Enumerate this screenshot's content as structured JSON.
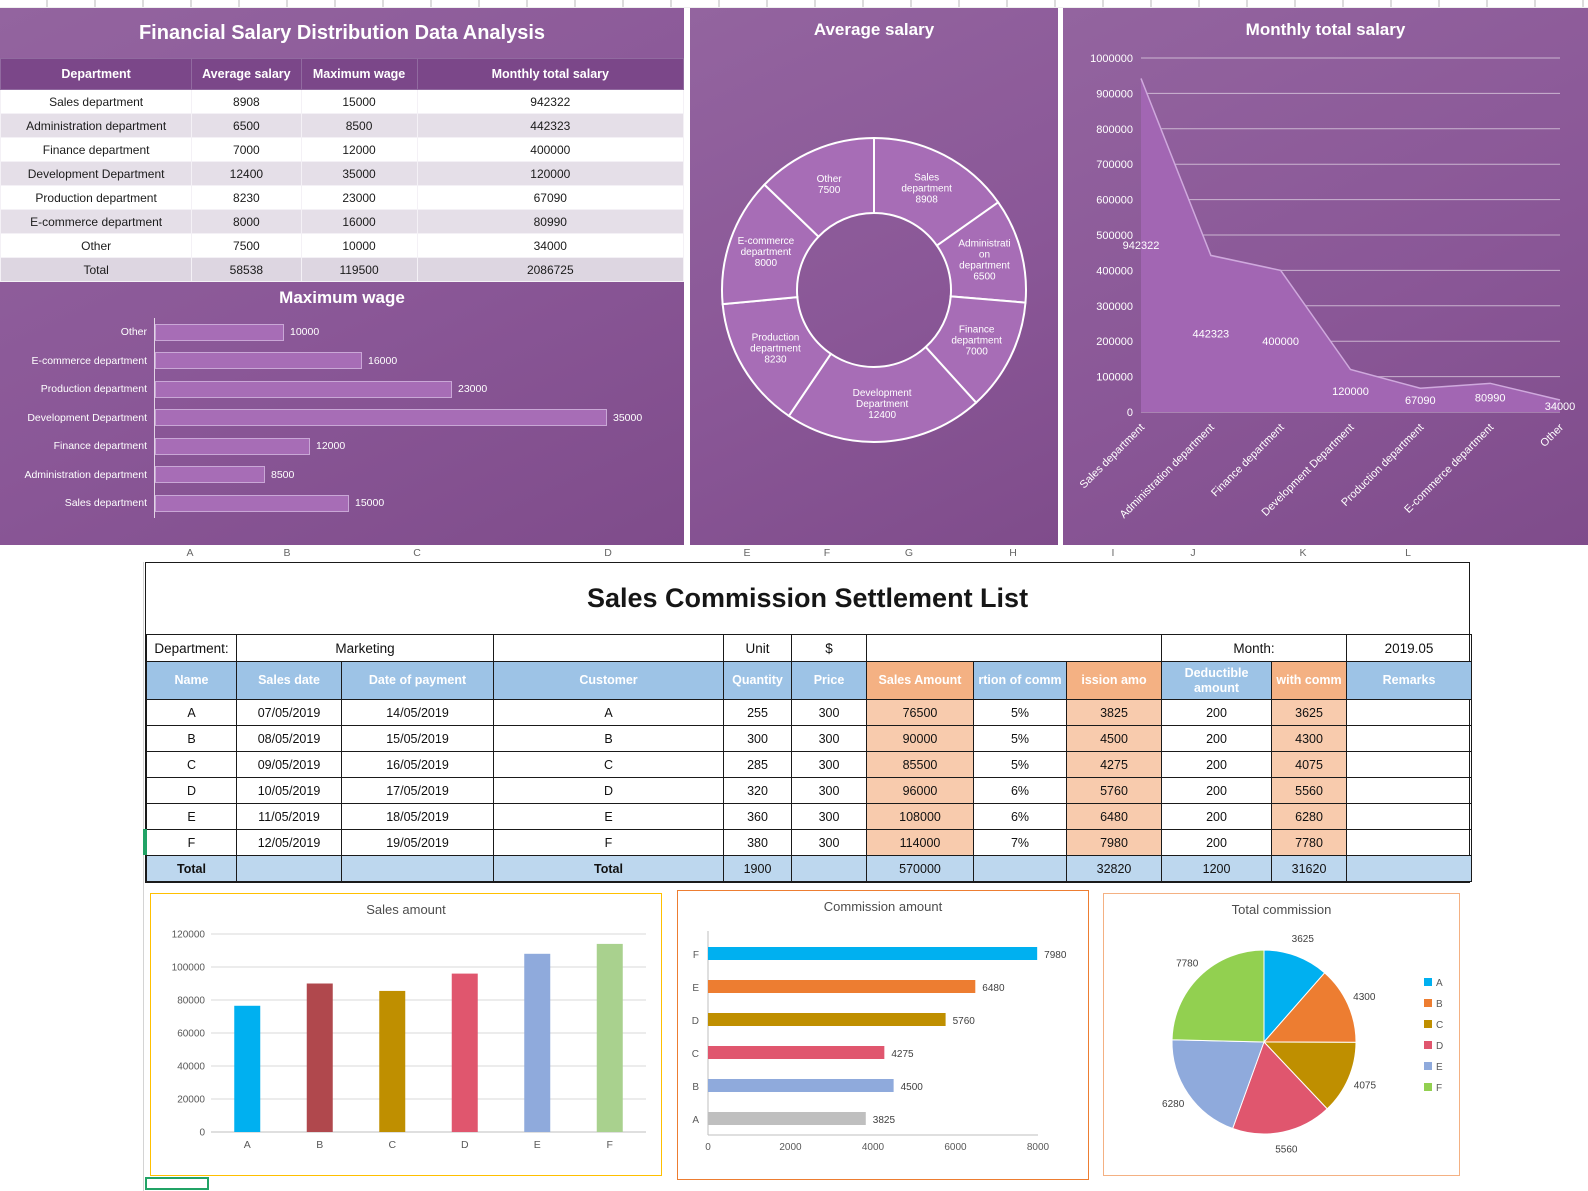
{
  "theme": {
    "dashboard_bg": "#8a5797",
    "table_header_purple": "#7b4789",
    "table_alt_row": "#e5dfe8",
    "purple_bar": "#a76db6",
    "header_blue": "#9dc3e6",
    "header_peach": "#f4b183",
    "cell_peach": "#f8cbad",
    "total_row_blue": "#bdd7ee",
    "selection_green": "#21a366",
    "sales_panel_border": "#ffc000",
    "commission_panel_border": "#ed7d31",
    "pie_panel_border": "#f4b183"
  },
  "spreadsheet": {
    "column_letters": [
      "A",
      "B",
      "C",
      "D",
      "E",
      "F",
      "G",
      "H",
      "I",
      "J",
      "K",
      "L"
    ]
  },
  "salary_panel": {
    "title": "Financial Salary Distribution Data Analysis",
    "table": {
      "headers": [
        "Department",
        "Average salary",
        "Maximum wage",
        "Monthly total salary"
      ],
      "rows": [
        [
          "Sales department",
          "8908",
          "15000",
          "942322"
        ],
        [
          "Administration department",
          "6500",
          "8500",
          "442323"
        ],
        [
          "Finance department",
          "7000",
          "12000",
          "400000"
        ],
        [
          "Development Department",
          "12400",
          "35000",
          "120000"
        ],
        [
          "Production department",
          "8230",
          "23000",
          "67090"
        ],
        [
          "E-commerce department",
          "8000",
          "16000",
          "80990"
        ],
        [
          "Other",
          "7500",
          "10000",
          "34000"
        ],
        [
          "Total",
          "58538",
          "119500",
          "2086725"
        ]
      ]
    }
  },
  "commission_sheet": {
    "title": "Sales Commission Settlement List",
    "info": {
      "department_label": "Department:",
      "department_value": "Marketing",
      "unit_label": "Unit",
      "unit_value": "$",
      "month_label": "Month:",
      "month_value": "2019.05"
    },
    "table": {
      "headers": [
        "Name",
        "Sales date",
        "Date of payment",
        "Customer",
        "Quantity",
        "Price",
        "Sales Amount",
        "rtion of comm",
        "ission amo",
        "Deductible amount",
        "with comm",
        "Remarks"
      ],
      "rows": [
        [
          "A",
          "07/05/2019",
          "14/05/2019",
          "A",
          "255",
          "300",
          "76500",
          "5%",
          "3825",
          "200",
          "3625",
          ""
        ],
        [
          "B",
          "08/05/2019",
          "15/05/2019",
          "B",
          "300",
          "300",
          "90000",
          "5%",
          "4500",
          "200",
          "4300",
          ""
        ],
        [
          "C",
          "09/05/2019",
          "16/05/2019",
          "C",
          "285",
          "300",
          "85500",
          "5%",
          "4275",
          "200",
          "4075",
          ""
        ],
        [
          "D",
          "10/05/2019",
          "17/05/2019",
          "D",
          "320",
          "300",
          "96000",
          "6%",
          "5760",
          "200",
          "5560",
          ""
        ],
        [
          "E",
          "11/05/2019",
          "18/05/2019",
          "E",
          "360",
          "300",
          "108000",
          "6%",
          "6480",
          "200",
          "6280",
          ""
        ],
        [
          "F",
          "12/05/2019",
          "19/05/2019",
          "F",
          "380",
          "300",
          "114000",
          "7%",
          "7980",
          "200",
          "7780",
          ""
        ]
      ],
      "total_row": [
        "Total",
        "",
        "",
        "Total",
        "1900",
        "",
        "570000",
        "",
        "32820",
        "1200",
        "31620",
        ""
      ]
    }
  },
  "chart_data": [
    {
      "id": "maximum_wage",
      "type": "bar",
      "orientation": "horizontal",
      "title": "Maximum wage",
      "categories": [
        "Sales department",
        "Administration department",
        "Finance department",
        "Development Department",
        "Production department",
        "E-commerce department",
        "Other"
      ],
      "values": [
        15000,
        8500,
        12000,
        35000,
        23000,
        16000,
        10000
      ],
      "xlim": [
        0,
        35000
      ],
      "bar_color": "#a76db6",
      "display_order": "reversed",
      "data_labels": true
    },
    {
      "id": "average_salary",
      "type": "pie",
      "subtype": "doughnut",
      "title": "Average salary",
      "categories": [
        "Sales department",
        "Administration department",
        "Finance department",
        "Development Department",
        "Production department",
        "E-commerce department",
        "Other"
      ],
      "values": [
        8908,
        6500,
        7000,
        12400,
        8230,
        8000,
        7500
      ],
      "label_lines": [
        [
          "Sales",
          "department",
          "8908"
        ],
        [
          "Administrati",
          "on",
          "department",
          "6500"
        ],
        [
          "Finance",
          "department",
          "7000"
        ],
        [
          "Development",
          "Department",
          "12400"
        ],
        [
          "Production",
          "department",
          "8230"
        ],
        [
          "E-commerce",
          "department",
          "8000"
        ],
        [
          "Other",
          "7500"
        ]
      ],
      "slice_color": "#a76db6"
    },
    {
      "id": "monthly_total_salary",
      "type": "area",
      "title": "Monthly total salary",
      "categories": [
        "Sales department",
        "Administration department",
        "Finance department",
        "Development Department",
        "Production department",
        "E-commerce department",
        "Other"
      ],
      "values": [
        942322,
        442323,
        400000,
        120000,
        67090,
        80990,
        34000
      ],
      "ylim": [
        0,
        1000000
      ],
      "ytick_step": 100000,
      "fill": "#a266b3",
      "grid": true,
      "data_labels": true
    },
    {
      "id": "sales_amount",
      "type": "bar",
      "title": "Sales amount",
      "categories": [
        "A",
        "B",
        "C",
        "D",
        "E",
        "F"
      ],
      "values": [
        76500,
        90000,
        85500,
        96000,
        108000,
        114000
      ],
      "colors": [
        "#00b0f0",
        "#b0484d",
        "#bf8f00",
        "#e0566e",
        "#8faadc",
        "#a9d18e"
      ],
      "ylim": [
        0,
        120000
      ],
      "ytick_step": 20000,
      "grid": true
    },
    {
      "id": "commission_amount",
      "type": "bar",
      "orientation": "horizontal",
      "title": "Commission amount",
      "categories": [
        "A",
        "B",
        "C",
        "D",
        "E",
        "F"
      ],
      "values": [
        3825,
        4500,
        4275,
        5760,
        6480,
        7980
      ],
      "colors": [
        "#bfbfbf",
        "#8faadc",
        "#e0566e",
        "#bf8f00",
        "#ed7d31",
        "#00b0f0"
      ],
      "xlim": [
        0,
        8000
      ],
      "xtick_step": 2000,
      "display_order": "reversed",
      "data_labels": true
    },
    {
      "id": "total_commission",
      "type": "pie",
      "title": "Total commission",
      "categories": [
        "A",
        "B",
        "C",
        "D",
        "E",
        "F"
      ],
      "values": [
        3625,
        4300,
        4075,
        5560,
        6280,
        7780
      ],
      "colors": [
        "#00b0f0",
        "#ed7d31",
        "#bf8f00",
        "#e0566e",
        "#8faadc",
        "#92d050"
      ],
      "legend_position": "right",
      "data_labels": true
    }
  ]
}
